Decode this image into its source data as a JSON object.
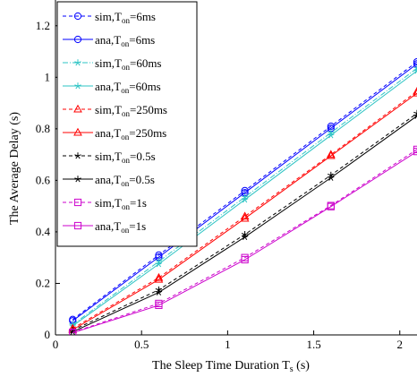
{
  "chart_data": {
    "type": "line",
    "xlabel": "The Sleep Time Duration T",
    "xlabel_sub": "s",
    "xlabel_unit": " (s)",
    "ylabel": "The Average Delay (s)",
    "xlim": [
      0,
      2.1
    ],
    "ylim": [
      0,
      1.3
    ],
    "xticks": [
      0,
      0.5,
      1,
      1.5,
      2
    ],
    "xtick_labels": [
      "0",
      "0.5",
      "1",
      "1.5",
      "2"
    ],
    "yticks": [
      0,
      0.2,
      0.4,
      0.6,
      0.8,
      1,
      1.2
    ],
    "ytick_labels": [
      "0",
      "0.2",
      "0.4",
      "0.6",
      "0.8",
      "1",
      "1.2"
    ],
    "grid": false,
    "legend_position": "top-left",
    "x": [
      0.1,
      0.6,
      1.1,
      1.6,
      2.1
    ],
    "series": [
      {
        "name_main": "sim,T",
        "name_sub": "on",
        "name_tail": "=6ms",
        "color": "#0000ff",
        "dash": "dashed",
        "marker": "circle",
        "values": [
          0.06,
          0.31,
          0.56,
          0.81,
          1.06
        ]
      },
      {
        "name_main": "ana,T",
        "name_sub": "on",
        "name_tail": "=6ms",
        "color": "#0000ff",
        "dash": "solid",
        "marker": "circle",
        "values": [
          0.055,
          0.302,
          0.552,
          0.802,
          1.052
        ]
      },
      {
        "name_main": "sim,T",
        "name_sub": "on",
        "name_tail": "=60ms",
        "color": "#2ec4c4",
        "dash": "dashdot",
        "marker": "star",
        "values": [
          0.04,
          0.285,
          0.535,
          0.785,
          1.035
        ]
      },
      {
        "name_main": "ana,T",
        "name_sub": "on",
        "name_tail": "=60ms",
        "color": "#2ec4c4",
        "dash": "solid",
        "marker": "star",
        "values": [
          0.035,
          0.275,
          0.525,
          0.775,
          1.025
        ]
      },
      {
        "name_main": "sim,T",
        "name_sub": "on",
        "name_tail": "=250ms",
        "color": "#ff0000",
        "dash": "dashed",
        "marker": "triangle",
        "values": [
          0.025,
          0.222,
          0.46,
          0.7,
          0.945
        ]
      },
      {
        "name_main": "ana,T",
        "name_sub": "on",
        "name_tail": "=250ms",
        "color": "#ff0000",
        "dash": "solid",
        "marker": "triangle",
        "values": [
          0.02,
          0.215,
          0.452,
          0.695,
          0.938
        ]
      },
      {
        "name_main": "sim,T",
        "name_sub": "on",
        "name_tail": "=0.5s",
        "color": "#000000",
        "dash": "dashed",
        "marker": "star",
        "values": [
          0.018,
          0.175,
          0.39,
          0.62,
          0.86
        ]
      },
      {
        "name_main": "ana,T",
        "name_sub": "on",
        "name_tail": "=0.5s",
        "color": "#000000",
        "dash": "solid",
        "marker": "star",
        "values": [
          0.012,
          0.165,
          0.38,
          0.61,
          0.85
        ]
      },
      {
        "name_main": "sim,T",
        "name_sub": "on",
        "name_tail": "=1s",
        "color": "#cc00cc",
        "dash": "dashed",
        "marker": "square",
        "values": [
          0.01,
          0.122,
          0.3,
          0.502,
          0.72
        ]
      },
      {
        "name_main": "ana,T",
        "name_sub": "on",
        "name_tail": "=1s",
        "color": "#cc00cc",
        "dash": "solid",
        "marker": "square",
        "values": [
          0.008,
          0.115,
          0.292,
          0.498,
          0.712
        ]
      }
    ]
  }
}
